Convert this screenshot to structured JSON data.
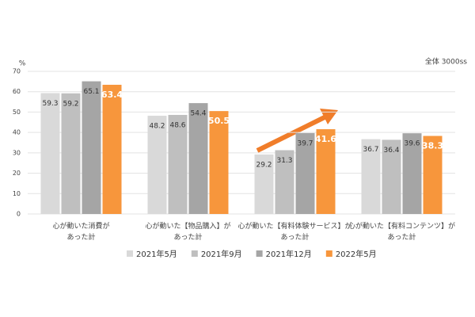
{
  "chart_data": {
    "type": "bar",
    "unit": "%",
    "note": "全体 3000ss",
    "categories": [
      "心が動いた消費が\nあった計",
      "心が動いた【物品購入】が\nあった計",
      "心が動いた【有料体験サービス】が\nあった計",
      "心が動いた【有料コンテンツ】が\nあった計"
    ],
    "series": [
      {
        "name": "2021年5月",
        "color": "#d9d9d9",
        "values": [
          59.3,
          48.2,
          29.2,
          36.7
        ]
      },
      {
        "name": "2021年9月",
        "color": "#bfbfbf",
        "values": [
          59.2,
          48.6,
          31.3,
          36.4
        ]
      },
      {
        "name": "2021年12月",
        "color": "#a5a5a5",
        "values": [
          65.1,
          54.4,
          39.7,
          39.6
        ]
      },
      {
        "name": "2022年5月",
        "color": "#f7963c",
        "values": [
          63.4,
          50.5,
          41.6,
          38.3
        ]
      }
    ],
    "ylim": [
      0,
      70
    ],
    "yticks": [
      0,
      10,
      20,
      30,
      40,
      50,
      60,
      70
    ],
    "grid": true
  }
}
